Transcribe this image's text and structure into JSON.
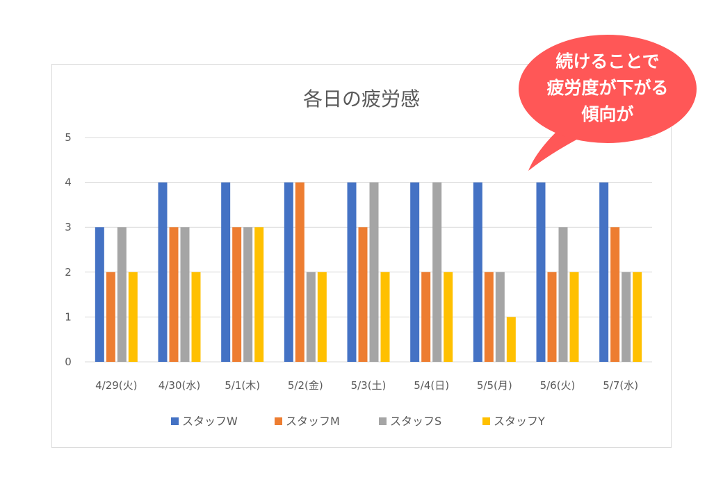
{
  "chart_data": {
    "type": "bar",
    "title": "各日の疲労感",
    "categories": [
      "4/29(火)",
      "4/30(水)",
      "5/1(木)",
      "5/2(金)",
      "5/3(土)",
      "5/4(日)",
      "5/5(月)",
      "5/6(火)",
      "5/7(水)"
    ],
    "series": [
      {
        "name": "スタッフW",
        "color": "#4472C4",
        "values": [
          3,
          4,
          4,
          4,
          4,
          4,
          4,
          4,
          4
        ]
      },
      {
        "name": "スタッフM",
        "color": "#ED7D31",
        "values": [
          2,
          3,
          3,
          4,
          3,
          2,
          2,
          2,
          3
        ]
      },
      {
        "name": "スタッフS",
        "color": "#A5A5A5",
        "values": [
          3,
          3,
          3,
          2,
          4,
          4,
          2,
          3,
          2
        ]
      },
      {
        "name": "スタッフY",
        "color": "#FFC000",
        "values": [
          2,
          2,
          3,
          2,
          2,
          2,
          1,
          2,
          2
        ]
      }
    ],
    "ylim": [
      0,
      5
    ],
    "yticks": [
      0,
      1,
      2,
      3,
      4,
      5
    ],
    "grid": true,
    "legend": "bottom"
  },
  "callout": {
    "lines": [
      "続けることで",
      "疲労度が下がる",
      "傾向が"
    ],
    "color": "#FF5757"
  }
}
